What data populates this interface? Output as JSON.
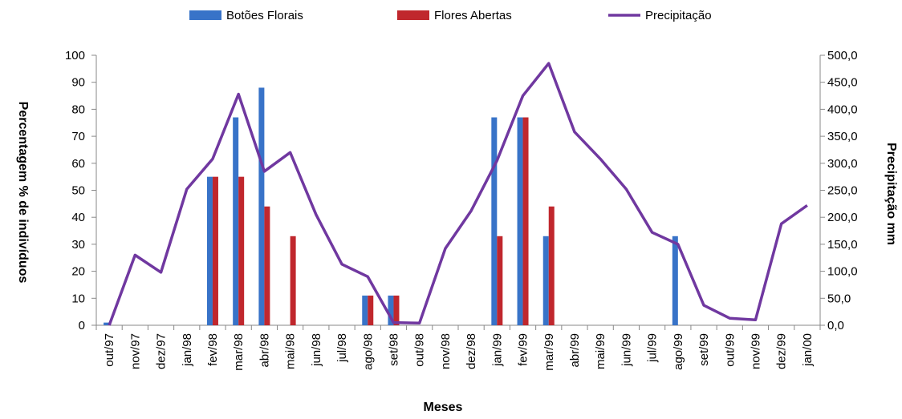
{
  "chart_data": {
    "type": "bar",
    "xlabel": "Meses",
    "ylabel_left": "Percentagem % de indivíduos",
    "ylabel_right": "Precipitação mm",
    "ylim_left": [
      0,
      100
    ],
    "ylim_right": [
      0,
      500
    ],
    "yticks_left": [
      "0",
      "10",
      "20",
      "30",
      "40",
      "50",
      "60",
      "70",
      "80",
      "90",
      "100"
    ],
    "yticks_right": [
      "0,0",
      "50,0",
      "100,0",
      "150,0",
      "200,0",
      "250,0",
      "300,0",
      "350,0",
      "400,0",
      "450,0",
      "500,0"
    ],
    "categories": [
      "out/97",
      "nov/97",
      "dez/97",
      "jan/98",
      "fev/98",
      "mar/98",
      "abr/98",
      "mai/98",
      "jun/98",
      "jul/98",
      "ago/98",
      "set/98",
      "out/98",
      "nov/98",
      "dez/98",
      "jan/99",
      "fev/99",
      "mar/99",
      "abr/99",
      "mai/99",
      "jun/99",
      "jul/99",
      "ago/99",
      "set/99",
      "out/99",
      "nov/99",
      "dez/99",
      "jan/00"
    ],
    "legend_position": "top",
    "grid": false,
    "series": [
      {
        "name": "Botões Florais",
        "kind": "bar",
        "axis": "left",
        "color": "#3873c8",
        "values": [
          1,
          0,
          0,
          0,
          55,
          77,
          88,
          0,
          0,
          0,
          11,
          11,
          0,
          0,
          0,
          77,
          77,
          33,
          0,
          0,
          0,
          0,
          33,
          0,
          0,
          0,
          0,
          0
        ]
      },
      {
        "name": "Flores Abertas",
        "kind": "bar",
        "axis": "left",
        "color": "#c0272d",
        "values": [
          0,
          0,
          0,
          0,
          55,
          55,
          44,
          33,
          0,
          0,
          11,
          11,
          0,
          0,
          0,
          33,
          77,
          44,
          0,
          0,
          0,
          0,
          0,
          0,
          0,
          0,
          0,
          0
        ]
      },
      {
        "name": "Precipitação",
        "kind": "line",
        "axis": "right",
        "color": "#7038a0",
        "values": [
          0,
          130,
          98,
          252,
          308,
          428,
          285,
          320,
          205,
          113,
          90,
          5,
          4,
          142,
          212,
          305,
          425,
          485,
          358,
          308,
          252,
          172,
          150,
          37,
          13,
          10,
          188,
          222
        ]
      }
    ]
  }
}
